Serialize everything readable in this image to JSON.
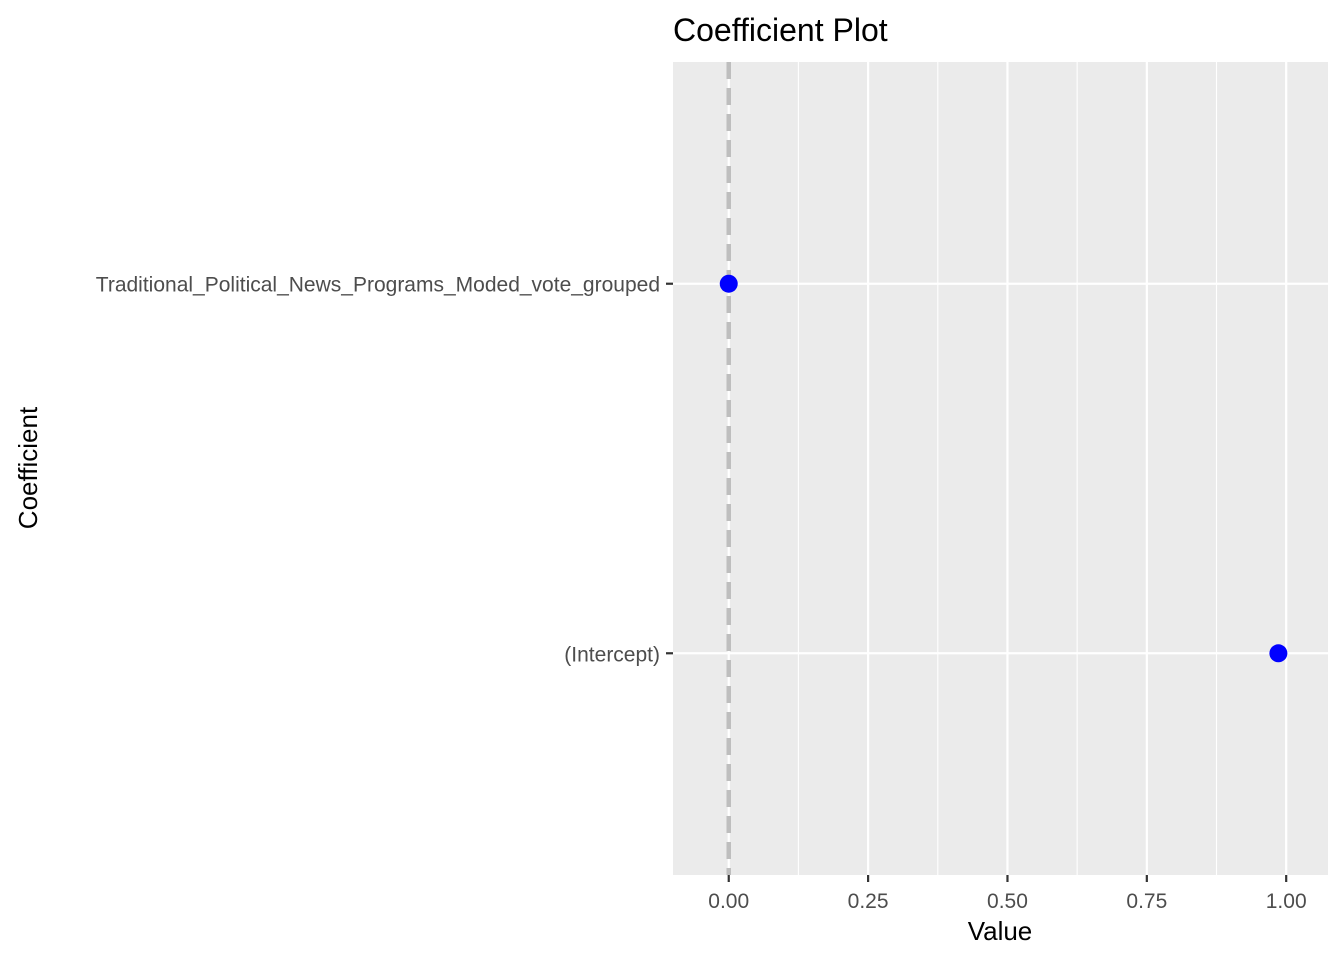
{
  "chart_data": {
    "type": "scatter",
    "title": "Coefficient Plot",
    "xlabel": "Value",
    "ylabel": "Coefficient",
    "categories": [
      "(Intercept)",
      "Traditional_Political_News_Programs_Moded_vote_grouped"
    ],
    "series": [
      {
        "points": [
          {
            "category": "Traditional_Political_News_Programs_Moded_vote_grouped",
            "value": 0.0
          },
          {
            "category": "(Intercept)",
            "value": 0.986
          }
        ]
      }
    ],
    "xlim": [
      -0.1,
      1.075
    ],
    "xticks": [
      0.0,
      0.25,
      0.5,
      0.75,
      1.0
    ],
    "xtick_labels": [
      "0.00",
      "0.25",
      "0.50",
      "0.75",
      "1.00"
    ],
    "reference_line": {
      "value": 0,
      "style": "dashed",
      "color": "#bebebe"
    },
    "point_color": "#0000ff",
    "panel_background": "#ebebeb",
    "grid": true
  }
}
